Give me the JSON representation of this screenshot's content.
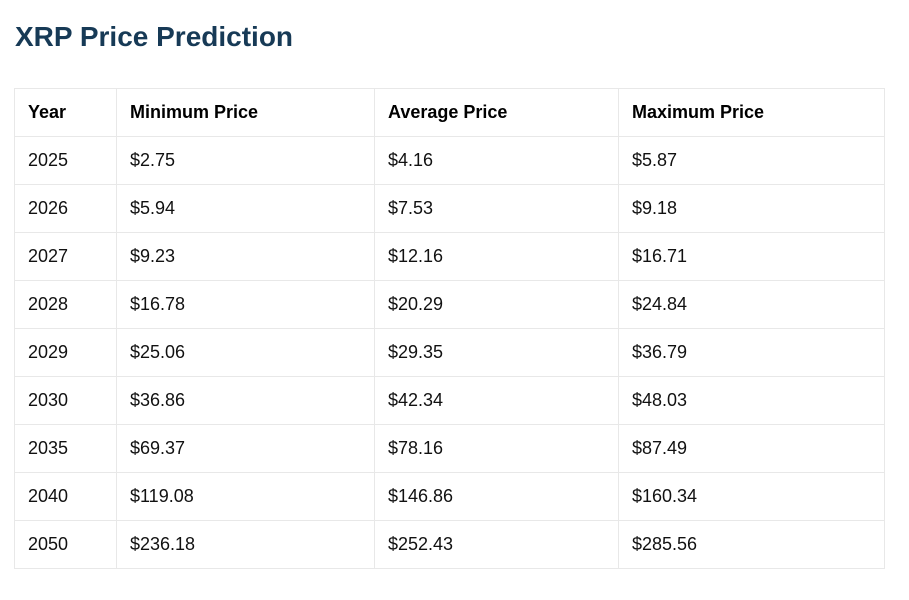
{
  "page_title": "XRP Price Prediction",
  "colors": {
    "title": "#173A56",
    "table_border": "#e8e8e8",
    "text": "#111111",
    "background": "#ffffff"
  },
  "table": {
    "columns": [
      "Year",
      "Minimum Price",
      "Average Price",
      "Maximum Price"
    ],
    "rows": [
      [
        "2025",
        "$2.75",
        "$4.16",
        "$5.87"
      ],
      [
        "2026",
        "$5.94",
        "$7.53",
        "$9.18"
      ],
      [
        "2027",
        "$9.23",
        "$12.16",
        "$16.71"
      ],
      [
        "2028",
        "$16.78",
        "$20.29",
        "$24.84"
      ],
      [
        "2029",
        "$25.06",
        "$29.35",
        "$36.79"
      ],
      [
        "2030",
        "$36.86",
        "$42.34",
        "$48.03"
      ],
      [
        "2035",
        "$69.37",
        "$78.16",
        "$87.49"
      ],
      [
        "2040",
        "$119.08",
        "$146.86",
        "$160.34"
      ],
      [
        "2050",
        "$236.18",
        "$252.43",
        "$285.56"
      ]
    ]
  },
  "chart_data": {
    "type": "table",
    "title": "XRP Price Prediction",
    "columns": [
      "Year",
      "Minimum Price",
      "Average Price",
      "Maximum Price"
    ],
    "rows": [
      [
        2025,
        2.75,
        4.16,
        5.87
      ],
      [
        2026,
        5.94,
        7.53,
        9.18
      ],
      [
        2027,
        9.23,
        12.16,
        16.71
      ],
      [
        2028,
        16.78,
        20.29,
        24.84
      ],
      [
        2029,
        25.06,
        29.35,
        36.79
      ],
      [
        2030,
        36.86,
        42.34,
        48.03
      ],
      [
        2035,
        69.37,
        78.16,
        87.49
      ],
      [
        2040,
        119.08,
        146.86,
        160.34
      ],
      [
        2050,
        236.18,
        252.43,
        285.56
      ]
    ],
    "units": "USD"
  }
}
